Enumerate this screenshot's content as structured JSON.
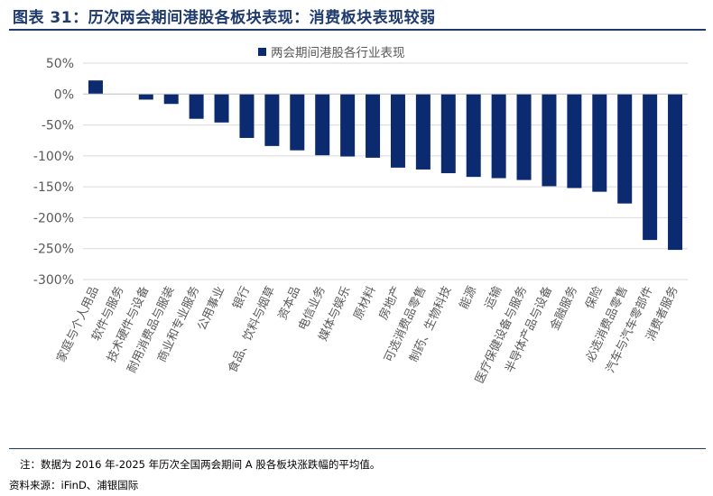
{
  "header": {
    "title": "图表 31：历次两会期间港股各板块表现：消费板块表现较弱"
  },
  "footer": {
    "note": "注：数据为 2016 年-2025 年历次全国两会期间 A 股各板块涨跌幅的平均值。",
    "source": "资料来源：iFinD、浦银国际"
  },
  "colors": {
    "bar": "#0b2a6f",
    "grid": "#d9d9d9",
    "rule": "#1f3a6e"
  },
  "chart_data": {
    "type": "bar",
    "legend": {
      "label": "两会期间港股各行业表现",
      "position": "top"
    },
    "ylim": [
      -300,
      50
    ],
    "yticks": [
      50,
      0,
      -50,
      -100,
      -150,
      -200,
      -250,
      -300
    ],
    "ytick_labels": [
      "50%",
      "0%",
      "-50%",
      "-100%",
      "-150%",
      "-200%",
      "-250%",
      "-300%"
    ],
    "grid": true,
    "categories": [
      "家庭与个人用品",
      "软件与服务",
      "技术硬件与设备",
      "耐用消费品与服装",
      "商业和专业服务",
      "公用事业",
      "银行",
      "食品、饮料与烟草",
      "资本品",
      "电信业务",
      "媒体与娱乐",
      "原材料",
      "房地产",
      "可选消费品零售",
      "制药、生物科技",
      "能源",
      "运输",
      "医疗保健设备与服务",
      "半导体产品与设备",
      "金融服务",
      "保险",
      "必选消费品零售",
      "汽车与汽车零部件",
      "消费者服务"
    ],
    "values": [
      22,
      0,
      -9,
      -16,
      -40,
      -46,
      -71,
      -84,
      -91,
      -99,
      -101,
      -103,
      -119,
      -122,
      -128,
      -134,
      -136,
      -139,
      -149,
      -152,
      -158,
      -177,
      -236,
      -252
    ]
  }
}
